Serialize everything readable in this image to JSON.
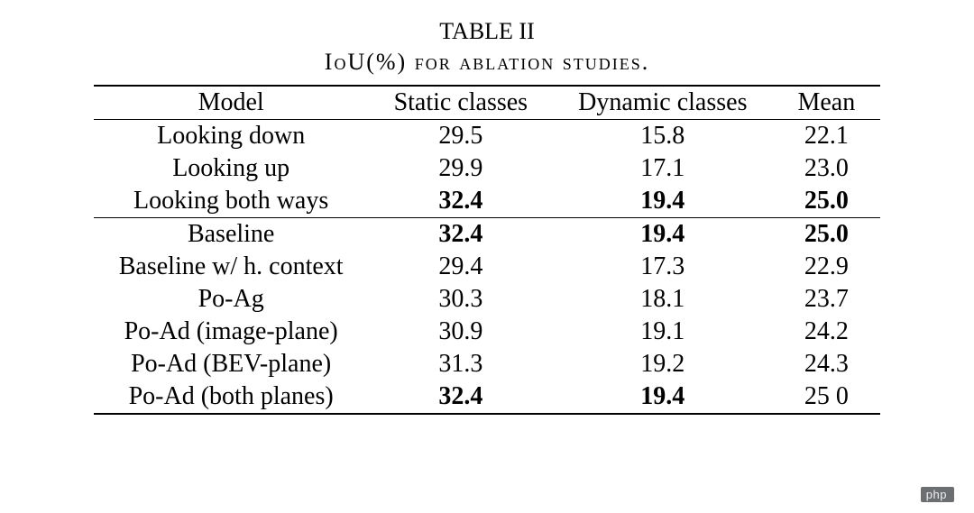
{
  "table_label": "TABLE II",
  "caption_prefix": "I",
  "caption_unit": "oU(%)",
  "caption_rest": " for ablation studies.",
  "columns": [
    "Model",
    "Static classes",
    "Dynamic classes",
    "Mean"
  ],
  "groups": [
    {
      "rows": [
        {
          "model": "Looking down",
          "static": "29.5",
          "dynamic": "15.8",
          "mean": "22.1",
          "bold": false
        },
        {
          "model": "Looking up",
          "static": "29.9",
          "dynamic": "17.1",
          "mean": "23.0",
          "bold": false
        },
        {
          "model": "Looking both ways",
          "static": "32.4",
          "dynamic": "19.4",
          "mean": "25.0",
          "bold": true
        }
      ]
    },
    {
      "rows": [
        {
          "model": "Baseline",
          "static": "32.4",
          "dynamic": "19.4",
          "mean": "25.0",
          "bold": true
        },
        {
          "model": "Baseline w/ h. context",
          "static": "29.4",
          "dynamic": "17.3",
          "mean": "22.9",
          "bold": false
        },
        {
          "model": "Po-Ag",
          "static": "30.3",
          "dynamic": "18.1",
          "mean": "23.7",
          "bold": false
        },
        {
          "model": "Po-Ad (image-plane)",
          "static": "30.9",
          "dynamic": "19.1",
          "mean": "24.2",
          "bold": false
        },
        {
          "model": "Po-Ad (BEV-plane)",
          "static": "31.3",
          "dynamic": "19.2",
          "mean": "24.3",
          "bold": false
        },
        {
          "model": "Po-Ad (both planes)",
          "static": "32.4",
          "dynamic": "19.4",
          "mean": "25.0",
          "bold_static": true,
          "bold_dynamic": true,
          "bold_mean": false,
          "mean_display": "25 0"
        }
      ]
    }
  ],
  "watermark": "php",
  "styling": {
    "body_font": "Times New Roman",
    "body_bg": "#ffffff",
    "text_color": "#000000",
    "rule_color": "#000000",
    "font_size_caption": 26,
    "font_size_table": 28,
    "cell_padding_v": 2,
    "cell_padding_h": 28,
    "watermark_bg": "#6b6f72",
    "watermark_fg": "#f1eff0"
  }
}
